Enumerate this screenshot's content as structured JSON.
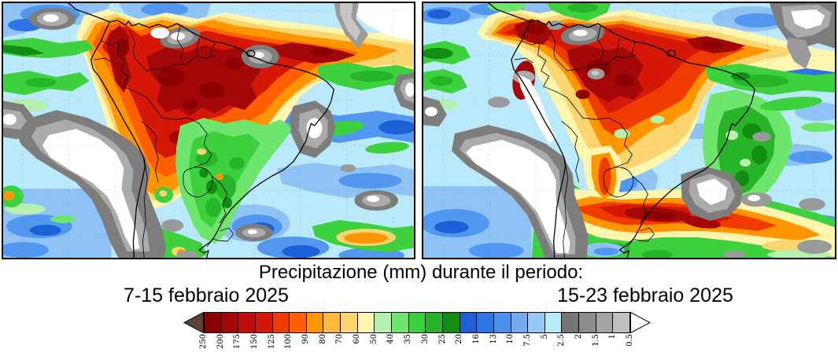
{
  "caption": "Precipitazione (mm) durante il periodo:",
  "panels": [
    {
      "label": "7-15 febbraio 2025",
      "position": "left"
    },
    {
      "label": "15-23 febbraio 2025",
      "position": "right"
    }
  ],
  "colorbar": {
    "boundary_labels": [
      "250",
      "200",
      "175",
      "150",
      "125",
      "100",
      "90",
      "80",
      "70",
      "60",
      "50",
      "40",
      "35",
      "30",
      "25",
      "20",
      "16",
      "13",
      "10",
      "7.5",
      "5",
      "2.5",
      "2",
      "1.5",
      "1",
      "0.5"
    ],
    "cell_colors": [
      "#8b0000",
      "#a30808",
      "#c00d0d",
      "#d51708",
      "#ef3b00",
      "#ff5f00",
      "#ff9500",
      "#ffb83d",
      "#fbd570",
      "#fdf6ae",
      "#b5f0ae",
      "#6ee66e",
      "#3ed13e",
      "#28b428",
      "#128c12",
      "#1c5fd6",
      "#2f74e4",
      "#4c90ee",
      "#74acf2",
      "#96c8f6",
      "#b8ecfa",
      "#757575",
      "#8c8c8c",
      "#a4a4a4",
      "#bfbfbf"
    ],
    "left_arrow_color": "#5e4036",
    "right_arrow_color": "#ffffff",
    "outline_color": "#000000"
  }
}
